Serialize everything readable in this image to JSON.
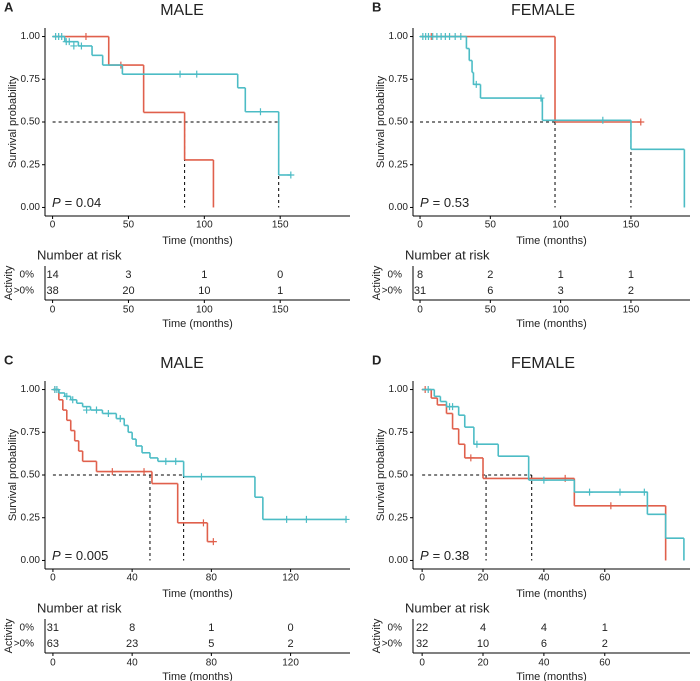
{
  "chart_data": [
    {
      "type": "survival",
      "panel": "A",
      "title": "MALE",
      "xlabel": "Time (months)",
      "ylabel": "Survival probability",
      "xlim": [
        -5,
        196
      ],
      "ylim": [
        -0.05,
        1.05
      ],
      "xticks": [
        0,
        50,
        100,
        150
      ],
      "yticks": [
        {
          "value": 0,
          "label": "0.00"
        },
        {
          "value": 0.25,
          "label": "0.25"
        },
        {
          "value": 0.5,
          "label": "0.50"
        },
        {
          "value": 0.75,
          "label": "0.75"
        },
        {
          "value": 1,
          "label": "1.00"
        }
      ],
      "annotation": [
        "P",
        "= 0.04"
      ],
      "median_lines": {
        "y": 0.5,
        "x": [
          87,
          149
        ]
      },
      "series": [
        {
          "name": "0%",
          "color": "#e0604c",
          "x": [
            0,
            37,
            60,
            87,
            106
          ],
          "values": [
            1,
            0.833,
            0.556,
            0.278,
            0
          ],
          "censor_x": [
            22,
            45
          ],
          "censor_values": [
            1,
            0.833
          ]
        },
        {
          "name": ">0%",
          "color": "#4cbcc5",
          "x": [
            0,
            8,
            17,
            26,
            33,
            46,
            122,
            127,
            149,
            157
          ],
          "values": [
            1,
            0.97,
            0.945,
            0.89,
            0.833,
            0.78,
            0.7,
            0.56,
            0.19,
            0.19
          ],
          "censor_x": [
            2,
            4,
            6,
            9,
            11,
            14,
            19,
            84,
            95,
            137,
            157
          ],
          "censor_values": [
            1,
            1,
            1,
            0.97,
            0.97,
            0.945,
            0.945,
            0.78,
            0.78,
            0.56,
            0.19
          ]
        }
      ],
      "risk_table": {
        "title": "Number at risk",
        "ylabel": "Activity",
        "xlabel": "Time (months)",
        "xticks": [
          0,
          50,
          100,
          150
        ],
        "counts": [
          [
            14,
            3,
            1,
            0
          ],
          [
            38,
            20,
            10,
            1
          ]
        ]
      }
    },
    {
      "type": "survival",
      "panel": "B",
      "title": "FEMALE",
      "xlabel": "Time (months)",
      "ylabel": "Survival probability",
      "xlim": [
        -5,
        192
      ],
      "ylim": [
        -0.05,
        1.05
      ],
      "xticks": [
        0,
        50,
        100,
        150
      ],
      "yticks": [
        {
          "value": 0,
          "label": "0.00"
        },
        {
          "value": 0.25,
          "label": "0.25"
        },
        {
          "value": 0.5,
          "label": "0.50"
        },
        {
          "value": 0.75,
          "label": "0.75"
        },
        {
          "value": 1,
          "label": "1.00"
        }
      ],
      "annotation": [
        "P",
        "= 0.53"
      ],
      "median_lines": {
        "y": 0.5,
        "x": [
          96,
          150
        ]
      },
      "series": [
        {
          "name": "0%",
          "color": "#e0604c",
          "x": [
            0,
            96,
            157
          ],
          "values": [
            1,
            0.5,
            0.5
          ],
          "censor_x": [
            8,
            157
          ],
          "censor_values": [
            1,
            0.5
          ]
        },
        {
          "name": ">0%",
          "color": "#4cbcc5",
          "x": [
            0,
            33,
            35,
            37,
            38,
            43,
            87,
            150,
            188
          ],
          "values": [
            1,
            0.93,
            0.86,
            0.79,
            0.72,
            0.64,
            0.51,
            0.34,
            0
          ],
          "censor_x": [
            2,
            4,
            6,
            9,
            12,
            15,
            18,
            21,
            25,
            29,
            40,
            86,
            130
          ],
          "censor_values": [
            1,
            1,
            1,
            1,
            1,
            1,
            1,
            1,
            1,
            1,
            0.72,
            0.64,
            0.51
          ]
        }
      ],
      "risk_table": {
        "title": "Number at risk",
        "ylabel": "Activity",
        "xlabel": "Time (months)",
        "xticks": [
          0,
          50,
          100,
          150
        ],
        "counts": [
          [
            8,
            2,
            1,
            1
          ],
          [
            31,
            6,
            3,
            2
          ]
        ]
      }
    },
    {
      "type": "survival",
      "panel": "C",
      "title": "MALE",
      "xlabel": "Time (months)",
      "ylabel": "Survival probability",
      "xlim": [
        -4,
        150
      ],
      "ylim": [
        -0.05,
        1.05
      ],
      "xticks": [
        0,
        40,
        80,
        120
      ],
      "yticks": [
        {
          "value": 0,
          "label": "0.00"
        },
        {
          "value": 0.25,
          "label": "0.25"
        },
        {
          "value": 0.5,
          "label": "0.50"
        },
        {
          "value": 0.75,
          "label": "0.75"
        },
        {
          "value": 1,
          "label": "1.00"
        }
      ],
      "annotation": [
        "P",
        "= 0.005"
      ],
      "median_lines": {
        "y": 0.5,
        "x": [
          49,
          66
        ]
      },
      "series": [
        {
          "name": "0%",
          "color": "#e0604c",
          "x": [
            0,
            3,
            5,
            7,
            9,
            11,
            13,
            15,
            22,
            50,
            63,
            78,
            81
          ],
          "values": [
            1,
            0.94,
            0.88,
            0.82,
            0.76,
            0.7,
            0.64,
            0.58,
            0.52,
            0.45,
            0.22,
            0.11,
            0.11
          ],
          "censor_x": [
            1,
            30,
            46,
            76,
            81
          ],
          "censor_values": [
            1,
            0.52,
            0.52,
            0.22,
            0.11
          ]
        },
        {
          "name": ">0%",
          "color": "#4cbcc5",
          "x": [
            0,
            3,
            6,
            9,
            12,
            15,
            19,
            25,
            32,
            36,
            38,
            40,
            42,
            45,
            49,
            53,
            66,
            102,
            106,
            148
          ],
          "values": [
            1,
            0.98,
            0.96,
            0.94,
            0.92,
            0.9,
            0.88,
            0.86,
            0.83,
            0.79,
            0.75,
            0.71,
            0.67,
            0.63,
            0.6,
            0.58,
            0.49,
            0.37,
            0.24,
            0.24
          ],
          "censor_x": [
            1,
            2,
            7,
            10,
            17,
            22,
            28,
            34,
            57,
            62,
            75,
            118,
            128,
            148
          ],
          "censor_values": [
            1,
            1,
            0.96,
            0.94,
            0.88,
            0.88,
            0.86,
            0.83,
            0.58,
            0.58,
            0.49,
            0.24,
            0.24,
            0.24
          ]
        }
      ],
      "risk_table": {
        "title": "Number at risk",
        "ylabel": "Activity",
        "xlabel": "Time (months)",
        "xticks": [
          0,
          40,
          80,
          120
        ],
        "counts": [
          [
            31,
            8,
            1,
            0
          ],
          [
            63,
            23,
            5,
            2
          ]
        ]
      }
    },
    {
      "type": "survival",
      "panel": "D",
      "title": "FEMALE",
      "xlabel": "Time (months)",
      "ylabel": "Survival probability",
      "xlim": [
        -3,
        88
      ],
      "ylim": [
        -0.05,
        1.05
      ],
      "xticks": [
        0,
        20,
        40,
        60
      ],
      "yticks": [
        {
          "value": 0,
          "label": "0.00"
        },
        {
          "value": 0.25,
          "label": "0.25"
        },
        {
          "value": 0.5,
          "label": "0.50"
        },
        {
          "value": 0.75,
          "label": "0.75"
        },
        {
          "value": 1,
          "label": "1.00"
        }
      ],
      "annotation": [
        "P",
        "= 0.38"
      ],
      "median_lines": {
        "y": 0.5,
        "x": [
          21,
          36
        ]
      },
      "series": [
        {
          "name": "0%",
          "color": "#e0604c",
          "x": [
            0,
            3,
            5,
            8,
            10,
            12,
            14,
            20,
            50,
            80
          ],
          "values": [
            1,
            0.95,
            0.91,
            0.86,
            0.77,
            0.68,
            0.6,
            0.48,
            0.32,
            0
          ],
          "censor_x": [
            1,
            16,
            47,
            62
          ],
          "censor_values": [
            1,
            0.6,
            0.48,
            0.32
          ]
        },
        {
          "name": ">0%",
          "color": "#4cbcc5",
          "x": [
            0,
            4,
            6,
            8,
            12,
            14,
            17,
            25,
            35,
            50,
            74,
            80,
            86
          ],
          "values": [
            1,
            0.96,
            0.93,
            0.9,
            0.85,
            0.78,
            0.68,
            0.61,
            0.47,
            0.4,
            0.27,
            0.13,
            0
          ],
          "censor_x": [
            2,
            9,
            10,
            18,
            40,
            55,
            65,
            73
          ],
          "censor_values": [
            1,
            0.9,
            0.9,
            0.68,
            0.47,
            0.4,
            0.4,
            0.4
          ]
        }
      ],
      "risk_table": {
        "title": "Number at risk",
        "ylabel": "Activity",
        "xlabel": "Time (months)",
        "xticks": [
          0,
          20,
          40,
          60
        ],
        "counts": [
          [
            22,
            4,
            4,
            1
          ],
          [
            32,
            10,
            6,
            2
          ]
        ]
      }
    }
  ]
}
